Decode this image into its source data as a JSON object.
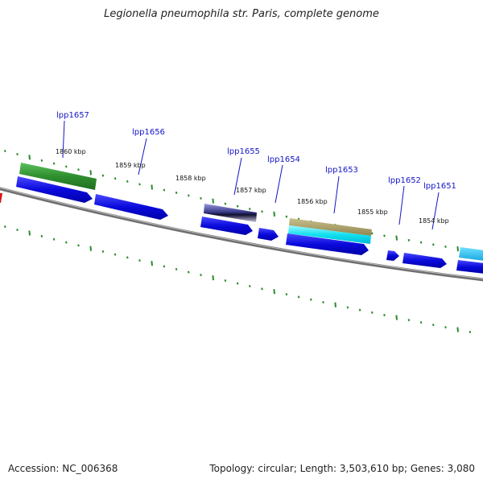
{
  "title": "Legionella pneumophila str. Paris, complete genome",
  "footer": {
    "accession": "Accession: NC_006368",
    "summary": "Topology: circular; Length: 3,503,610 bp; Genes: 3,080"
  },
  "colors": {
    "backbone": "#7a7a7a",
    "cds": "#0a0adc",
    "tick": "#2a8a2a",
    "label": "#1414c8",
    "marker": "#e01010"
  },
  "kbp_labels": [
    "1860 kbp",
    "1859 kbp",
    "1858 kbp",
    "1857 kbp",
    "1856 kbp",
    "1855 kbp",
    "1854 kbp"
  ],
  "gene_labels": [
    "lpp1657",
    "lpp1656",
    "lpp1655",
    "lpp1654",
    "lpp1653",
    "lpp1652",
    "lpp1651"
  ]
}
